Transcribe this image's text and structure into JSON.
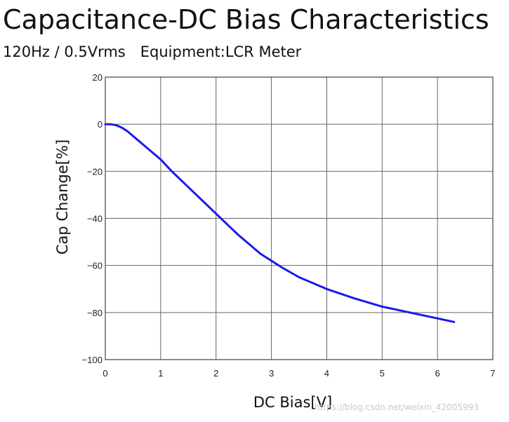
{
  "title": "Capacitance-DC Bias Characteristics",
  "subtitle": "120Hz / 0.5Vrms Equipment:LCR Meter",
  "watermark": "https://blog.csdn.net/weixin_42005993",
  "chart_data": {
    "type": "line",
    "title": "Capacitance-DC Bias Characteristics",
    "subtitle": "120Hz / 0.5Vrms   Equipment:LCR Meter",
    "xlabel": "DC Bias[V]",
    "ylabel": "Cap Change[%]",
    "xlim": [
      0,
      7
    ],
    "ylim": [
      -100,
      20
    ],
    "xticks": [
      0,
      1,
      2,
      3,
      4,
      5,
      6,
      7
    ],
    "yticks": [
      20,
      0,
      -20,
      -40,
      -60,
      -80,
      -100
    ],
    "ytick_labels": [
      "20",
      "0",
      "−20",
      "−40",
      "−60",
      "−80",
      "−100"
    ],
    "grid": true,
    "series": [
      {
        "name": "Cap Change",
        "color": "#1a1aee",
        "x": [
          0,
          0.1,
          0.2,
          0.3,
          0.4,
          0.5,
          0.6,
          0.7,
          0.8,
          0.9,
          1.0,
          1.2,
          1.4,
          1.6,
          1.8,
          2.0,
          2.2,
          2.4,
          2.6,
          2.8,
          3.0,
          3.2,
          3.5,
          4.0,
          4.5,
          5.0,
          5.5,
          6.0,
          6.3
        ],
        "y": [
          0,
          0,
          -0.5,
          -1.5,
          -3,
          -5,
          -7,
          -9,
          -11,
          -13,
          -15,
          -20,
          -24.5,
          -29,
          -33.5,
          -38,
          -42.5,
          -47,
          -51,
          -55,
          -58,
          -61,
          -65,
          -70,
          -74,
          -77.5,
          -80,
          -82.5,
          -84
        ]
      }
    ]
  }
}
